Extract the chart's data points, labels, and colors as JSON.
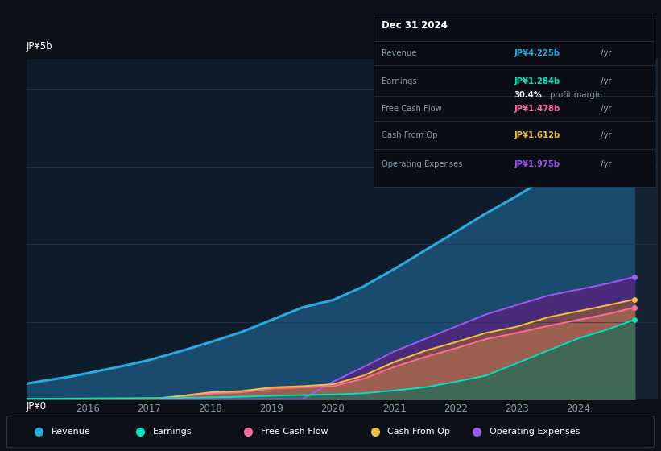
{
  "background_color": "#0d1117",
  "plot_bg_color": "#0d1b2a",
  "title": "Dec 31 2024",
  "ylabel_top": "JP¥5b",
  "ylabel_bottom": "JP¥0",
  "years": [
    2015.0,
    2015.3,
    2015.7,
    2016.0,
    2016.5,
    2017.0,
    2017.5,
    2018.0,
    2018.5,
    2019.0,
    2019.5,
    2020.0,
    2020.5,
    2021.0,
    2021.5,
    2022.0,
    2022.5,
    2023.0,
    2023.5,
    2024.0,
    2024.5,
    2024.92
  ],
  "revenue": [
    0.25,
    0.3,
    0.36,
    0.42,
    0.52,
    0.63,
    0.77,
    0.92,
    1.08,
    1.28,
    1.48,
    1.6,
    1.82,
    2.1,
    2.4,
    2.7,
    3.0,
    3.28,
    3.58,
    3.92,
    4.12,
    4.225
  ],
  "earnings": [
    0.005,
    0.007,
    0.01,
    0.012,
    0.015,
    0.018,
    0.022,
    0.028,
    0.038,
    0.055,
    0.065,
    0.075,
    0.095,
    0.14,
    0.19,
    0.28,
    0.38,
    0.58,
    0.78,
    0.98,
    1.13,
    1.284
  ],
  "free_cash": [
    0.0,
    0.0,
    0.0,
    0.0,
    0.0,
    0.0,
    0.04,
    0.09,
    0.11,
    0.17,
    0.19,
    0.21,
    0.33,
    0.52,
    0.68,
    0.82,
    0.97,
    1.07,
    1.18,
    1.28,
    1.38,
    1.478
  ],
  "cash_op": [
    0.0,
    0.0,
    0.0,
    0.0,
    0.0,
    0.0,
    0.05,
    0.11,
    0.13,
    0.19,
    0.21,
    0.24,
    0.38,
    0.6,
    0.78,
    0.92,
    1.07,
    1.17,
    1.32,
    1.42,
    1.52,
    1.612
  ],
  "op_expenses": [
    0.0,
    0.0,
    0.0,
    0.0,
    0.0,
    0.0,
    0.0,
    0.0,
    0.0,
    0.0,
    0.0,
    0.28,
    0.52,
    0.77,
    0.97,
    1.17,
    1.37,
    1.52,
    1.67,
    1.77,
    1.87,
    1.975
  ],
  "revenue_color": "#29abe2",
  "earnings_color": "#00e5c0",
  "free_cash_color": "#ff6b9d",
  "cash_op_color": "#f0c040",
  "op_expenses_color": "#9b59f5",
  "revenue_fill": "#1a4a6e",
  "earnings_fill": "#1a6b5a",
  "free_cash_fill": "#c07080",
  "cash_op_fill": "#9a6030",
  "op_expenses_fill": "#4a2a7a",
  "grid_color": "#263850",
  "grid_lines": [
    1.25,
    2.5,
    3.75,
    5.0
  ],
  "xlim": [
    2015.0,
    2025.3
  ],
  "ylim": [
    0,
    5.5
  ],
  "xticks": [
    2016,
    2017,
    2018,
    2019,
    2020,
    2021,
    2022,
    2023,
    2024
  ],
  "highlight_x_start": 2024.0,
  "highlight_x_end": 2025.3,
  "legend_items": [
    "Revenue",
    "Earnings",
    "Free Cash Flow",
    "Cash From Op",
    "Operating Expenses"
  ],
  "legend_colors": [
    "#29abe2",
    "#00e5c0",
    "#ff6b9d",
    "#f0c040",
    "#9b59f5"
  ],
  "table_rows": [
    {
      "label": "Revenue",
      "value": "JP¥4.225b /yr",
      "color": "#29abe2"
    },
    {
      "label": "Earnings",
      "value": "JP¥1.284b /yr",
      "color": "#00e5c0"
    },
    {
      "label": "",
      "value": "30.4% profit margin",
      "color": "white"
    },
    {
      "label": "Free Cash Flow",
      "value": "JP¥1.478b /yr",
      "color": "#ff6b9d"
    },
    {
      "label": "Cash From Op",
      "value": "JP¥1.612b /yr",
      "color": "#f0c040"
    },
    {
      "label": "Operating Expenses",
      "value": "JP¥1.975b /yr",
      "color": "#9b59f5"
    }
  ]
}
